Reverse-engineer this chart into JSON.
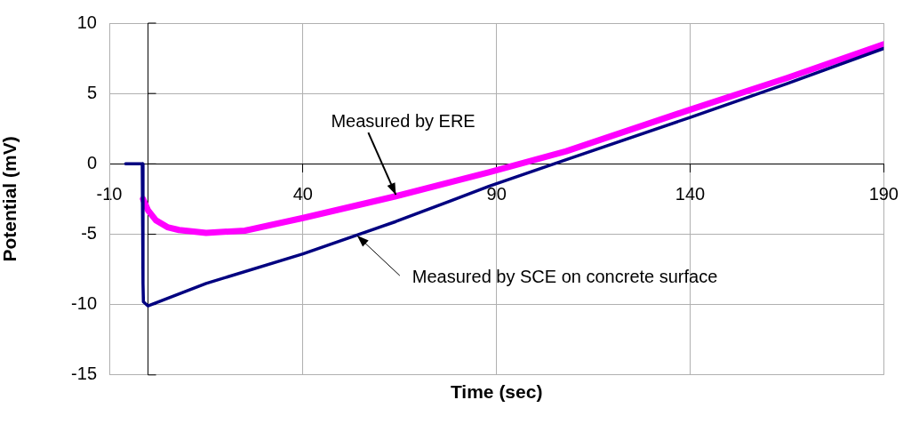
{
  "chart_data": {
    "type": "line",
    "xlabel": "Time (sec)",
    "ylabel": "Potential (mV)",
    "xlim": [
      -10,
      190
    ],
    "xticks": [
      -10,
      40,
      90,
      140,
      190
    ],
    "ylim": [
      -15,
      10
    ],
    "yticks": [
      -15,
      -10,
      -5,
      0,
      5,
      10
    ],
    "grid": true,
    "marker": "none",
    "line_style": "solid",
    "series": [
      {
        "color": "#000080",
        "x": [
          -5.8,
          -1.5,
          -1.3,
          -1.2,
          0,
          15,
          40,
          64,
          88,
          108,
          140,
          165,
          190
        ],
        "values": [
          0,
          0,
          -8.5,
          -9.8,
          -10.1,
          -8.5,
          -6.4,
          -4.1,
          -1.6,
          0.3,
          3.3,
          5.7,
          8.2
        ]
      },
      {
        "color": "#ff00ff",
        "x": [
          -1.3,
          0,
          2,
          5,
          8,
          15,
          25,
          40,
          64,
          88,
          108,
          140,
          165,
          190
        ],
        "values": [
          -2.5,
          -3.3,
          -4.0,
          -4.5,
          -4.7,
          -4.9,
          -4.75,
          -3.85,
          -2.3,
          -0.6,
          0.9,
          3.85,
          6.1,
          8.5
        ]
      }
    ],
    "annotations": [
      {
        "text": "Measured by ERE",
        "x": 64,
        "y": -2.2
      },
      {
        "text": "Measured by SCE on concrete surface",
        "x": 54,
        "y": -5.1
      }
    ]
  }
}
